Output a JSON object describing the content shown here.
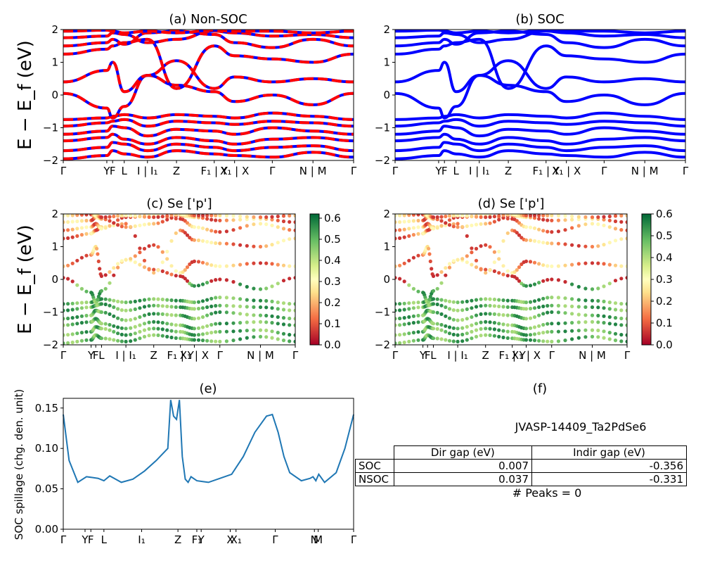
{
  "chart_data": [
    {
      "id": "a",
      "type": "line",
      "title": "(a) Non-SOC",
      "ylabel": "E − E_f (eV)",
      "ylim": [
        -2,
        2
      ],
      "yticks": [
        "−2",
        "−1",
        "0",
        "1",
        "2"
      ],
      "kpath_labels": [
        "Γ",
        "Y",
        "F",
        "L",
        "I | I₁",
        "Z",
        "F₁ | Y",
        "X₁ | X",
        "Γ",
        "N | M",
        "Γ"
      ],
      "colors": [
        "#0000ff",
        "#ff0000"
      ],
      "line_style": "blue solid with red dashed overlay",
      "series": [
        {
          "values": [
            -1.95,
            -1.85,
            -1.7,
            -1.8,
            -1.9,
            -1.7,
            -1.8,
            -1.85,
            -1.9,
            -1.75,
            -1.9
          ]
        },
        {
          "values": [
            -1.7,
            -1.6,
            -1.45,
            -1.5,
            -1.7,
            -1.5,
            -1.6,
            -1.7,
            -1.6,
            -1.55,
            -1.7
          ]
        },
        {
          "values": [
            -1.4,
            -1.3,
            -1.2,
            -1.35,
            -1.5,
            -1.3,
            -1.4,
            -1.5,
            -1.35,
            -1.3,
            -1.4
          ]
        },
        {
          "values": [
            -1.2,
            -1.1,
            -0.95,
            -1.0,
            -1.25,
            -1.05,
            -1.1,
            -1.2,
            -1.0,
            -1.1,
            -1.2
          ]
        },
        {
          "values": [
            -0.95,
            -0.85,
            -0.8,
            -0.75,
            -0.95,
            -0.8,
            -0.85,
            -0.9,
            -0.8,
            -0.85,
            -0.95
          ]
        },
        {
          "values": [
            -0.75,
            -0.7,
            -0.65,
            -0.6,
            -0.7,
            -0.6,
            -0.65,
            -0.7,
            -0.55,
            -0.65,
            -0.75
          ]
        },
        {
          "values": [
            0.05,
            -0.4,
            -0.7,
            -0.35,
            0.6,
            0.3,
            0.1,
            -0.2,
            0.0,
            -0.3,
            0.05
          ]
        },
        {
          "values": [
            0.4,
            0.75,
            1.0,
            0.1,
            0.6,
            1.05,
            0.2,
            0.55,
            0.4,
            0.5,
            0.4
          ]
        },
        {
          "values": [
            1.25,
            1.4,
            1.5,
            1.6,
            1.7,
            0.2,
            1.5,
            1.2,
            1.1,
            1.0,
            1.25
          ]
        },
        {
          "values": [
            1.5,
            1.6,
            1.7,
            1.55,
            1.9,
            1.95,
            1.85,
            1.6,
            1.45,
            1.7,
            1.5
          ]
        },
        {
          "values": [
            1.75,
            1.8,
            1.9,
            1.85,
            1.6,
            1.7,
            1.95,
            1.9,
            1.8,
            1.85,
            1.75
          ]
        },
        {
          "values": [
            1.95,
            1.98,
            1.95,
            1.9,
            1.95,
            1.9,
            1.98,
            1.95,
            1.95,
            1.9,
            1.95
          ]
        }
      ]
    },
    {
      "id": "b",
      "type": "line",
      "title": "(b) SOC",
      "ylim": [
        -2,
        2
      ],
      "yticks": [
        "−2",
        "−1",
        "0",
        "1",
        "2"
      ],
      "kpath_labels": [
        "Γ",
        "Y",
        "F",
        "L",
        "I | I₁",
        "Z",
        "F₁ | Y",
        "X₁ | X",
        "Γ",
        "N | M",
        "Γ"
      ],
      "colors": [
        "#0000ff"
      ],
      "series": [
        {
          "values": [
            -1.95,
            -1.85,
            -1.7,
            -1.8,
            -1.9,
            -1.7,
            -1.8,
            -1.85,
            -1.9,
            -1.75,
            -1.9
          ]
        },
        {
          "values": [
            -1.7,
            -1.6,
            -1.45,
            -1.5,
            -1.7,
            -1.5,
            -1.6,
            -1.7,
            -1.6,
            -1.55,
            -1.7
          ]
        },
        {
          "values": [
            -1.4,
            -1.3,
            -1.2,
            -1.35,
            -1.5,
            -1.3,
            -1.4,
            -1.5,
            -1.35,
            -1.3,
            -1.4
          ]
        },
        {
          "values": [
            -1.2,
            -1.1,
            -0.95,
            -1.0,
            -1.25,
            -1.05,
            -1.1,
            -1.2,
            -1.0,
            -1.1,
            -1.2
          ]
        },
        {
          "values": [
            -0.95,
            -0.85,
            -0.8,
            -0.75,
            -0.95,
            -0.8,
            -0.85,
            -0.9,
            -0.8,
            -0.85,
            -0.95
          ]
        },
        {
          "values": [
            -0.75,
            -0.7,
            -0.65,
            -0.6,
            -0.7,
            -0.6,
            -0.65,
            -0.7,
            -0.55,
            -0.65,
            -0.75
          ]
        },
        {
          "values": [
            0.05,
            -0.4,
            -0.7,
            -0.35,
            0.6,
            0.3,
            0.1,
            -0.2,
            0.0,
            -0.3,
            0.05
          ]
        },
        {
          "values": [
            0.4,
            0.75,
            1.0,
            0.1,
            0.6,
            1.05,
            0.2,
            0.55,
            0.4,
            0.5,
            0.4
          ]
        },
        {
          "values": [
            1.25,
            1.4,
            1.5,
            1.6,
            1.7,
            0.2,
            1.5,
            1.2,
            1.1,
            1.0,
            1.25
          ]
        },
        {
          "values": [
            1.5,
            1.6,
            1.7,
            1.55,
            1.9,
            1.95,
            1.85,
            1.6,
            1.45,
            1.7,
            1.5
          ]
        },
        {
          "values": [
            1.75,
            1.8,
            1.9,
            1.85,
            1.6,
            1.7,
            1.95,
            1.9,
            1.8,
            1.85,
            1.75
          ]
        },
        {
          "values": [
            1.95,
            1.98,
            1.95,
            1.9,
            1.95,
            1.9,
            1.98,
            1.95,
            1.95,
            1.9,
            1.95
          ]
        }
      ]
    },
    {
      "id": "c",
      "type": "scatter",
      "title": "(c)  Se ['p']",
      "ylabel": "E − E_f (eV)",
      "ylim": [
        -2,
        2
      ],
      "yticks": [
        "−2",
        "−1",
        "0",
        "1",
        "2"
      ],
      "kpath_labels": [
        "Γ",
        "Y",
        "F",
        "L",
        "I | I₁",
        "Z",
        "F₁ | Y",
        "X₁ | X",
        "Γ",
        "N | M",
        "Γ"
      ],
      "colorbar": {
        "ticks": [
          "0.0",
          "0.1",
          "0.2",
          "0.3",
          "0.4",
          "0.5",
          "0.6"
        ],
        "range": [
          0,
          0.62
        ],
        "colormap": "RdYlGn"
      }
    },
    {
      "id": "d",
      "type": "scatter",
      "title": "(d) Se ['p']",
      "ylim": [
        -2,
        2
      ],
      "yticks": [
        "−2",
        "−1",
        "0",
        "1",
        "2"
      ],
      "kpath_labels": [
        "Γ",
        "Y",
        "F",
        "L",
        "I | I₁",
        "Z",
        "F₁ | Y",
        "X₁ | X",
        "Γ",
        "N | M",
        "Γ"
      ],
      "colorbar": {
        "ticks": [
          "0.0",
          "0.1",
          "0.2",
          "0.3",
          "0.4",
          "0.5",
          "0.6"
        ],
        "range": [
          0,
          0.6
        ],
        "colormap": "RdYlGn"
      }
    },
    {
      "id": "e",
      "type": "line",
      "title": "(e)",
      "ylabel": "SOC spillage (chg. den. unit)",
      "ylim": [
        0,
        0.162
      ],
      "yticks": [
        "0.00",
        "0.05",
        "0.10",
        "0.15"
      ],
      "kpath_labels": [
        "Γ",
        "Y",
        "F",
        "L",
        "I₁",
        "Z",
        "F₁",
        "Y",
        "X",
        "X₁",
        "Γ",
        "N",
        "M",
        "Γ"
      ],
      "series": [
        {
          "x": [
            0,
            0.02,
            0.05,
            0.08,
            0.1,
            0.12,
            0.14,
            0.16,
            0.2,
            0.24,
            0.28,
            0.32,
            0.36,
            0.37,
            0.375,
            0.38,
            0.39,
            0.4,
            0.41,
            0.42,
            0.43,
            0.44,
            0.46,
            0.48,
            0.5,
            0.54,
            0.58,
            0.62,
            0.66,
            0.7,
            0.72,
            0.74,
            0.76,
            0.78,
            0.82,
            0.85,
            0.86,
            0.87,
            0.88,
            0.9,
            0.94,
            0.97,
            1.0
          ],
          "values": [
            0.142,
            0.085,
            0.058,
            0.065,
            0.064,
            0.063,
            0.06,
            0.066,
            0.058,
            0.062,
            0.072,
            0.085,
            0.1,
            0.16,
            0.15,
            0.14,
            0.136,
            0.16,
            0.09,
            0.062,
            0.058,
            0.065,
            0.06,
            0.059,
            0.058,
            0.063,
            0.068,
            0.09,
            0.12,
            0.14,
            0.142,
            0.12,
            0.09,
            0.07,
            0.06,
            0.063,
            0.065,
            0.06,
            0.068,
            0.058,
            0.07,
            0.1,
            0.142
          ]
        }
      ]
    },
    {
      "id": "f",
      "type": "table",
      "title": "(f)",
      "material": "JVASP-14409_Ta2PdSe6",
      "columns": [
        "",
        "Dir gap (eV)",
        "Indir gap (eV)"
      ],
      "rows": [
        [
          "SOC",
          "0.007",
          "-0.356"
        ],
        [
          "NSOC",
          "0.037",
          "-0.331"
        ]
      ],
      "peaks": "# Peaks = 0"
    }
  ]
}
